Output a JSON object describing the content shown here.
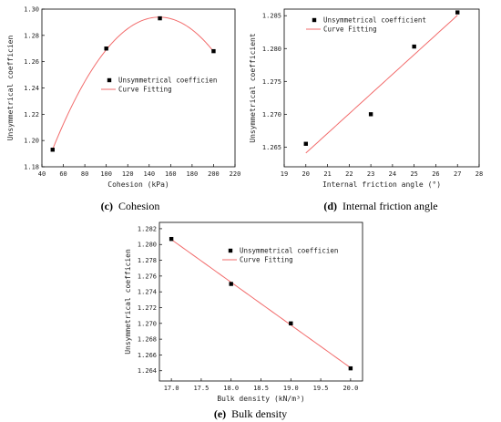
{
  "chart_data": [
    {
      "id": "c",
      "type": "scatter",
      "caption_letter": "(c)",
      "caption_text": "Cohesion",
      "xlabel": "Cohesion (kPa)",
      "ylabel": "Unsymmetrical coefficien",
      "xlim": [
        40,
        220
      ],
      "ylim": [
        1.18,
        1.3
      ],
      "xticks": [
        40,
        60,
        80,
        100,
        120,
        140,
        160,
        180,
        200,
        220
      ],
      "yticks": [
        1.18,
        1.2,
        1.22,
        1.24,
        1.26,
        1.28,
        1.3
      ],
      "ydecimals": 2,
      "fit": "quadratic",
      "legend": {
        "position": "center-right",
        "marker_label": "Unsymmetrical coefficien",
        "line_label": "Curve Fitting"
      },
      "series": [
        {
          "kind": "points",
          "x": [
            50,
            100,
            150,
            200
          ],
          "y": [
            1.193,
            1.27,
            1.293,
            1.268
          ]
        },
        {
          "kind": "line",
          "x": [
            50,
            200
          ]
        }
      ],
      "colors": {
        "points": "#000000",
        "line": "#f26b6b"
      }
    },
    {
      "id": "d",
      "type": "scatter",
      "caption_letter": "(d)",
      "caption_text": "Internal friction angle",
      "xlabel": "Internal friction angle (°)",
      "ylabel": "Unsymmetrical coefficient",
      "xlim": [
        19,
        28
      ],
      "ylim": [
        1.262,
        1.286
      ],
      "xticks": [
        19,
        20,
        21,
        22,
        23,
        24,
        25,
        26,
        27,
        28
      ],
      "yticks": [
        1.265,
        1.27,
        1.275,
        1.28,
        1.285
      ],
      "ydecimals": 3,
      "fit": "linear",
      "legend": {
        "position": "top-left",
        "marker_label": "Unsymmetrical coefficient",
        "line_label": "Curve Fitting"
      },
      "series": [
        {
          "kind": "points",
          "x": [
            20,
            23,
            25,
            27
          ],
          "y": [
            1.2655,
            1.27,
            1.2803,
            1.2855
          ]
        },
        {
          "kind": "line",
          "x": [
            20,
            27
          ]
        }
      ],
      "colors": {
        "points": "#000000",
        "line": "#f26b6b"
      }
    },
    {
      "id": "e",
      "type": "scatter",
      "caption_letter": "(e)",
      "caption_text": "Bulk density",
      "xlabel": "Bulk density (kN/m³)",
      "ylabel": "Unsymmetrical coefficien",
      "xlim": [
        16.8,
        20.2
      ],
      "ylim": [
        1.2627,
        1.2828
      ],
      "xticks": [
        17.0,
        17.5,
        18.0,
        18.5,
        19.0,
        19.5,
        20.0
      ],
      "yticks": [
        1.264,
        1.266,
        1.268,
        1.27,
        1.272,
        1.274,
        1.276,
        1.278,
        1.28,
        1.282
      ],
      "ydecimals": 3,
      "xdecimals": 1,
      "fit": "linear",
      "legend": {
        "position": "top-right",
        "marker_label": "Unsymmetrical coefficien",
        "line_label": "Curve Fitting"
      },
      "series": [
        {
          "kind": "points",
          "x": [
            17,
            18,
            19,
            20
          ],
          "y": [
            1.2807,
            1.275,
            1.27,
            1.2643
          ]
        },
        {
          "kind": "line",
          "x": [
            17,
            20
          ]
        }
      ],
      "colors": {
        "points": "#000000",
        "line": "#f26b6b"
      }
    }
  ]
}
